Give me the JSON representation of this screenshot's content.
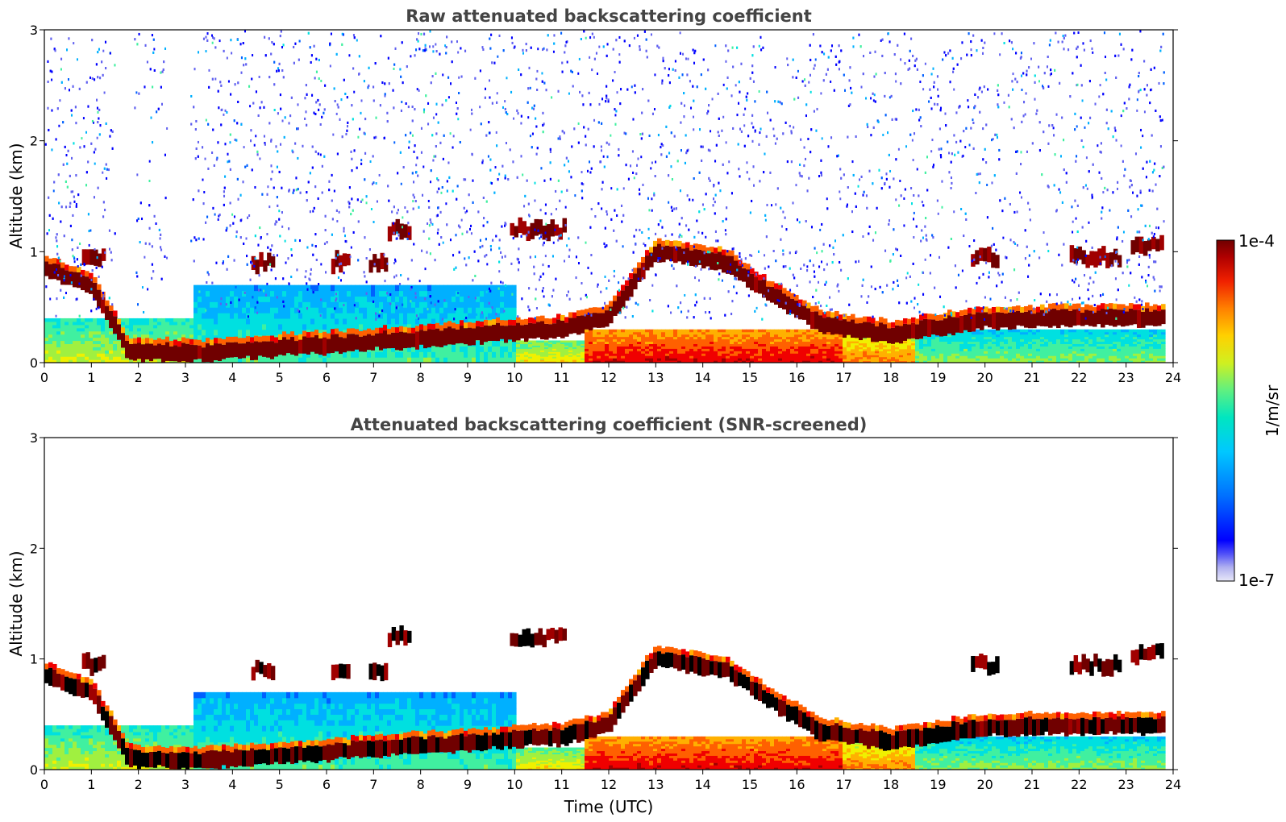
{
  "chart_data": [
    {
      "type": "heatmap",
      "title": "Raw attenuated backscattering coefficient",
      "xlabel": "",
      "ylabel": "Altitude (km)",
      "xlim": [
        0,
        24
      ],
      "ylim": [
        0,
        3
      ],
      "xticks": [
        "0",
        "1",
        "2",
        "3",
        "4",
        "5",
        "6",
        "7",
        "8",
        "9",
        "10",
        "11",
        "12",
        "13",
        "14",
        "15",
        "16",
        "17",
        "18",
        "19",
        "20",
        "21",
        "22",
        "23",
        "24"
      ],
      "yticks": [
        "0",
        "1",
        "2",
        "3"
      ],
      "noise": true,
      "surface_layer": [
        {
          "t0": 0.0,
          "t1": 3.2,
          "top": 0.4,
          "level": 0.45
        },
        {
          "t0": 3.2,
          "t1": 10.0,
          "top": 0.7,
          "level": 0.35
        },
        {
          "t0": 10.0,
          "t1": 11.5,
          "top": 0.2,
          "level": 0.5
        },
        {
          "t0": 11.5,
          "t1": 17.0,
          "top": 0.3,
          "level": 0.7
        },
        {
          "t0": 17.0,
          "t1": 18.5,
          "top": 0.25,
          "level": 0.6
        },
        {
          "t0": 18.5,
          "t1": 23.8,
          "top": 0.3,
          "level": 0.4
        }
      ],
      "cloud_layer": [
        {
          "t": 0.0,
          "z": 0.85
        },
        {
          "t": 1.0,
          "z": 0.7
        },
        {
          "t": 1.8,
          "z": 0.1
        },
        {
          "t": 3.2,
          "z": 0.08
        },
        {
          "t": 11.0,
          "z": 0.3
        },
        {
          "t": 12.0,
          "z": 0.4
        },
        {
          "t": 13.0,
          "z": 1.0
        },
        {
          "t": 14.5,
          "z": 0.9
        },
        {
          "t": 15.5,
          "z": 0.6
        },
        {
          "t": 16.5,
          "z": 0.35
        },
        {
          "t": 18.0,
          "z": 0.25
        },
        {
          "t": 19.0,
          "z": 0.32
        },
        {
          "t": 20.0,
          "z": 0.38
        },
        {
          "t": 22.0,
          "z": 0.4
        },
        {
          "t": 23.8,
          "z": 0.4
        }
      ],
      "elevated_clouds": [
        {
          "t0": 0.8,
          "t1": 1.3,
          "z": 0.95
        },
        {
          "t0": 4.4,
          "t1": 4.9,
          "z": 0.9
        },
        {
          "t0": 6.1,
          "t1": 6.5,
          "z": 0.9
        },
        {
          "t0": 6.9,
          "t1": 7.3,
          "z": 0.9
        },
        {
          "t0": 7.3,
          "t1": 7.8,
          "z": 1.2
        },
        {
          "t0": 9.9,
          "t1": 11.1,
          "z": 1.2
        },
        {
          "t0": 19.7,
          "t1": 20.3,
          "z": 0.95
        },
        {
          "t0": 21.8,
          "t1": 22.9,
          "z": 0.95
        },
        {
          "t0": 23.1,
          "t1": 23.8,
          "z": 1.05
        }
      ]
    },
    {
      "type": "heatmap",
      "title": "Attenuated backscattering coefficient (SNR-screened)",
      "xlabel": "Time (UTC)",
      "ylabel": "Altitude (km)",
      "xlim": [
        0,
        24
      ],
      "ylim": [
        0,
        3
      ],
      "xticks": [
        "0",
        "1",
        "2",
        "3",
        "4",
        "5",
        "6",
        "7",
        "8",
        "9",
        "10",
        "11",
        "12",
        "13",
        "14",
        "15",
        "16",
        "17",
        "18",
        "19",
        "20",
        "21",
        "22",
        "23",
        "24"
      ],
      "yticks": [
        "0",
        "1",
        "2",
        "3"
      ],
      "noise": false
    }
  ],
  "colorbar": {
    "label": "1/m/sr",
    "max_label": "1e-4",
    "min_label": "1e-7",
    "colors": [
      "#e8e8f8",
      "#b0b0f0",
      "#6060f0",
      "#0000ff",
      "#0060ff",
      "#00b0ff",
      "#00e0e0",
      "#40f0a0",
      "#a0f040",
      "#f0f000",
      "#ffb000",
      "#ff6000",
      "#f00000",
      "#a00000",
      "#700000"
    ]
  }
}
